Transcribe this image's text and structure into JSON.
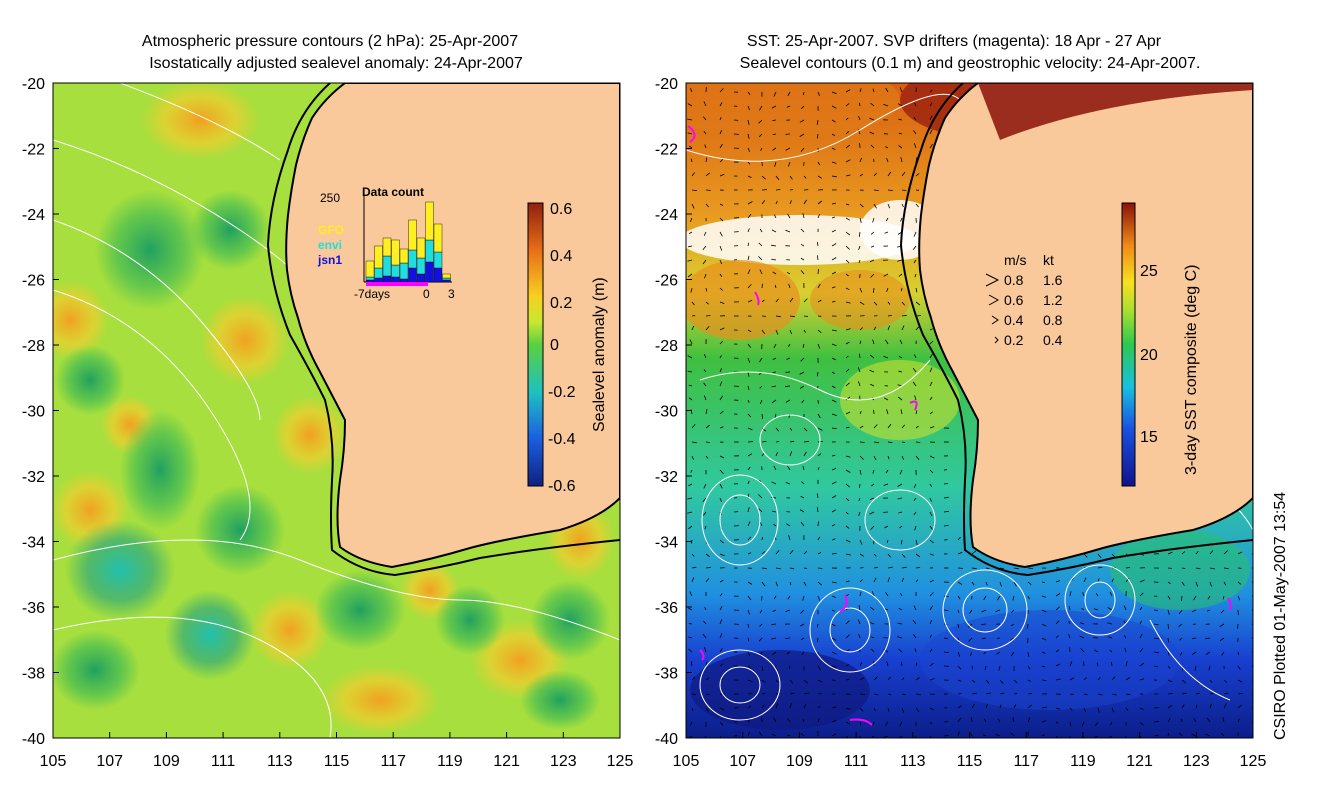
{
  "left_panel": {
    "title_line1": "Atmospheric pressure contours (2 hPa): 25-Apr-2007",
    "title_line2": "Isostatically adjusted sealevel anomaly: 24-Apr-2007",
    "colorbar": {
      "label": "Sealevel anomaly (m)",
      "ticks": [
        "0.6",
        "0.4",
        "0.2",
        "0",
        "-0.2",
        "-0.4",
        "-0.6"
      ]
    },
    "inset": {
      "title": "Data count",
      "ymax_label": "250",
      "x_labels": [
        "-7days",
        "0",
        "3"
      ],
      "legend": [
        {
          "name": "GFO",
          "color": "#ffee22"
        },
        {
          "name": "envi",
          "color": "#22dddd"
        },
        {
          "name": "jsn1",
          "color": "#1111dd"
        }
      ]
    }
  },
  "right_panel": {
    "title_line1": "SST: 25-Apr-2007. SVP drifters (magenta): 18 Apr - 27 Apr",
    "title_line2": "Sealevel contours (0.1 m) and geostrophic velocity: 24-Apr-2007.",
    "colorbar": {
      "label": "3-day SST composite (deg C)",
      "ticks": [
        "25",
        "20",
        "15"
      ]
    },
    "velocity_legend": {
      "header_ms": "m/s",
      "header_kt": "kt",
      "rows": [
        {
          "ms": "0.8",
          "kt": "1.6"
        },
        {
          "ms": "0.6",
          "kt": "1.2"
        },
        {
          "ms": "0.4",
          "kt": "0.8"
        },
        {
          "ms": "0.2",
          "kt": "0.4"
        }
      ]
    }
  },
  "axes": {
    "lat_labels": [
      "-20",
      "-22",
      "-24",
      "-26",
      "-28",
      "-30",
      "-32",
      "-34",
      "-36",
      "-38",
      "-40"
    ],
    "lon_labels": [
      "105",
      "107",
      "109",
      "111",
      "113",
      "115",
      "117",
      "119",
      "121",
      "123",
      "125"
    ]
  },
  "footer": "CSIRO Plotted 01-May-2007 13:54",
  "colors": {
    "land": "#f9c89b",
    "ocean_anomaly_base": "#a6df3e",
    "sst_warm": "#e07a18",
    "sst_cold": "#1a3fc8",
    "drifter": "#ff00ff"
  }
}
